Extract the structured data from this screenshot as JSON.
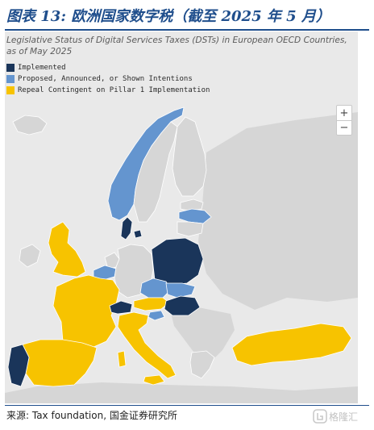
{
  "figure": {
    "title": "图表 13: 欧洲国家数字税（截至 2025 年 5 月）"
  },
  "map": {
    "caption": "Legislative Status of Digital Services Taxes (DSTs) in European OECD Countries, as of May 2025",
    "legend": [
      {
        "label": "Implemented",
        "color": "#1a355a"
      },
      {
        "label": "Proposed, Announced, or Shown Intentions",
        "color": "#6495cf"
      },
      {
        "label": "Repeal Contingent on Pillar 1 Implementation",
        "color": "#f7c300"
      }
    ],
    "colors": {
      "background": "#e9e9e9",
      "no_status": "#d6d6d6",
      "implemented": "#1a355a",
      "proposed": "#6495cf",
      "repeal_contingent": "#f7c300"
    },
    "zoom": {
      "in_label": "+",
      "out_label": "−"
    },
    "countries": [
      {
        "name": "Portugal",
        "status": "implemented"
      },
      {
        "name": "Spain",
        "status": "repeal_contingent"
      },
      {
        "name": "France",
        "status": "repeal_contingent"
      },
      {
        "name": "United Kingdom",
        "status": "repeal_contingent"
      },
      {
        "name": "Italy",
        "status": "repeal_contingent"
      },
      {
        "name": "Austria",
        "status": "repeal_contingent"
      },
      {
        "name": "Turkey",
        "status": "repeal_contingent"
      },
      {
        "name": "Switzerland",
        "status": "implemented"
      },
      {
        "name": "Denmark",
        "status": "implemented"
      },
      {
        "name": "Poland",
        "status": "implemented"
      },
      {
        "name": "Hungary",
        "status": "implemented"
      },
      {
        "name": "Norway",
        "status": "proposed"
      },
      {
        "name": "Belgium",
        "status": "proposed"
      },
      {
        "name": "Czech Republic",
        "status": "proposed"
      },
      {
        "name": "Slovakia",
        "status": "proposed"
      },
      {
        "name": "Slovenia",
        "status": "proposed"
      },
      {
        "name": "Latvia",
        "status": "proposed"
      },
      {
        "name": "Ireland",
        "status": "none"
      },
      {
        "name": "Germany",
        "status": "none"
      },
      {
        "name": "Netherlands",
        "status": "none"
      },
      {
        "name": "Sweden",
        "status": "none"
      },
      {
        "name": "Finland",
        "status": "none"
      },
      {
        "name": "Iceland",
        "status": "none"
      },
      {
        "name": "Greece",
        "status": "none"
      },
      {
        "name": "Estonia",
        "status": "none"
      },
      {
        "name": "Lithuania",
        "status": "none"
      }
    ]
  },
  "source": {
    "text": "来源: Tax foundation, 国金证券研究所",
    "watermark": "格隆汇"
  }
}
